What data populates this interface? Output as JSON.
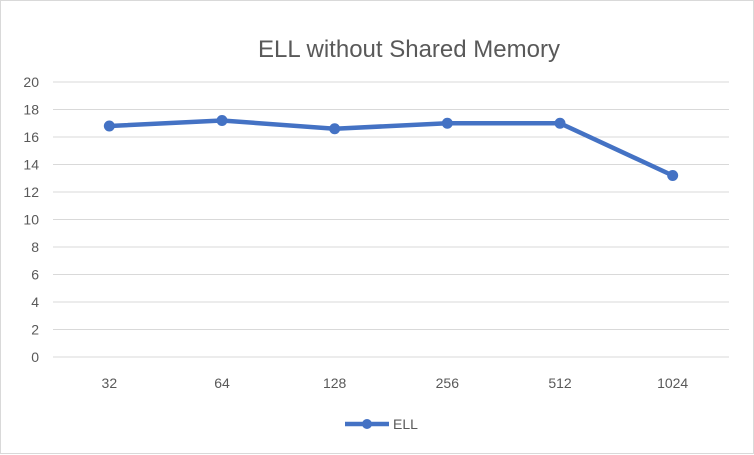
{
  "chart_data": {
    "type": "line",
    "title": "ELL without Shared Memory",
    "xlabel": "",
    "ylabel": "",
    "categories": [
      "32",
      "64",
      "128",
      "256",
      "512",
      "1024"
    ],
    "series": [
      {
        "name": "ELL",
        "values": [
          16.8,
          17.2,
          16.6,
          17.0,
          17.0,
          13.2
        ],
        "color": "#4472c4"
      }
    ],
    "ylim": [
      0,
      20
    ],
    "yticks": [
      "0",
      "2",
      "4",
      "6",
      "8",
      "10",
      "12",
      "14",
      "16",
      "18",
      "20"
    ],
    "grid": true,
    "legend": "bottom"
  }
}
